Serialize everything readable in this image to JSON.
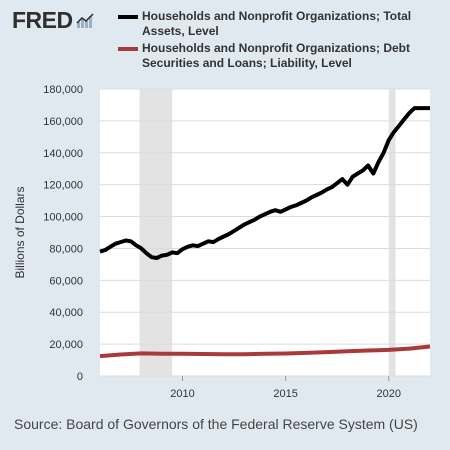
{
  "logo": {
    "text": "FRED",
    "mark": "®",
    "icon": "fred-graph-icon"
  },
  "source_text": "Source: Board of Governors of the Federal Reserve System (US)",
  "chart_data": {
    "type": "line",
    "ylabel": "Billions of Dollars",
    "xlabel": "",
    "ylim": [
      0,
      180000
    ],
    "xlim": [
      2006.0,
      2022.0
    ],
    "y_ticks": [
      0,
      20000,
      40000,
      60000,
      80000,
      100000,
      120000,
      140000,
      160000,
      180000
    ],
    "y_tick_labels": [
      "0",
      "20,000",
      "40,000",
      "60,000",
      "80,000",
      "100,000",
      "120,000",
      "140,000",
      "160,000",
      "180,000"
    ],
    "x_ticks": [
      2010,
      2015,
      2020
    ],
    "x_tick_labels": [
      "2010",
      "2015",
      "2020"
    ],
    "grid": "horizontal",
    "legend_position": "top",
    "background_color": "#ffffff",
    "recession_shading": [
      [
        2007.92,
        2009.5
      ],
      [
        2020.0,
        2020.33
      ]
    ],
    "series": [
      {
        "name": "Households and Nonprofit Organizations; Total Assets, Level",
        "color": "#000000",
        "x": [
          2006.0,
          2006.25,
          2006.5,
          2006.75,
          2007.0,
          2007.25,
          2007.5,
          2007.75,
          2008.0,
          2008.25,
          2008.5,
          2008.75,
          2009.0,
          2009.25,
          2009.5,
          2009.75,
          2010.0,
          2010.25,
          2010.5,
          2010.75,
          2011.0,
          2011.25,
          2011.5,
          2011.75,
          2012.0,
          2012.25,
          2012.5,
          2012.75,
          2013.0,
          2013.25,
          2013.5,
          2013.75,
          2014.0,
          2014.25,
          2014.5,
          2014.75,
          2015.0,
          2015.25,
          2015.5,
          2015.75,
          2016.0,
          2016.25,
          2016.5,
          2016.75,
          2017.0,
          2017.25,
          2017.5,
          2017.75,
          2018.0,
          2018.25,
          2018.5,
          2018.75,
          2019.0,
          2019.25,
          2019.5,
          2019.75,
          2020.0,
          2020.25,
          2020.5,
          2020.75,
          2021.0,
          2021.25,
          2021.5,
          2021.75,
          2022.0
        ],
        "values": [
          78000,
          79000,
          81000,
          83000,
          84000,
          85000,
          84500,
          82000,
          80000,
          77000,
          74500,
          74000,
          75500,
          76000,
          77500,
          77000,
          79500,
          81000,
          82000,
          81500,
          83000,
          84500,
          84000,
          86000,
          87500,
          89000,
          91000,
          93000,
          95000,
          96500,
          98000,
          100000,
          101500,
          103000,
          104000,
          103000,
          104500,
          106000,
          107000,
          108500,
          110000,
          112000,
          113500,
          115000,
          117000,
          118500,
          121000,
          123500,
          120000,
          125000,
          127000,
          129000,
          132000,
          127000,
          134000,
          140000,
          148000,
          153000,
          157000,
          161000,
          165000,
          168000,
          168000,
          168000,
          168000
        ]
      },
      {
        "name": "Households and Nonprofit Organizations; Debt Securities and Loans; Liability, Level",
        "color": "#a83a3a",
        "x": [
          2006.0,
          2007.0,
          2008.0,
          2009.0,
          2010.0,
          2011.0,
          2012.0,
          2013.0,
          2014.0,
          2015.0,
          2016.0,
          2017.0,
          2018.0,
          2019.0,
          2020.0,
          2021.0,
          2022.0
        ],
        "values": [
          12500,
          13500,
          14200,
          14000,
          13900,
          13800,
          13700,
          13700,
          13900,
          14100,
          14500,
          15000,
          15500,
          16000,
          16400,
          17200,
          18500
        ]
      }
    ]
  }
}
